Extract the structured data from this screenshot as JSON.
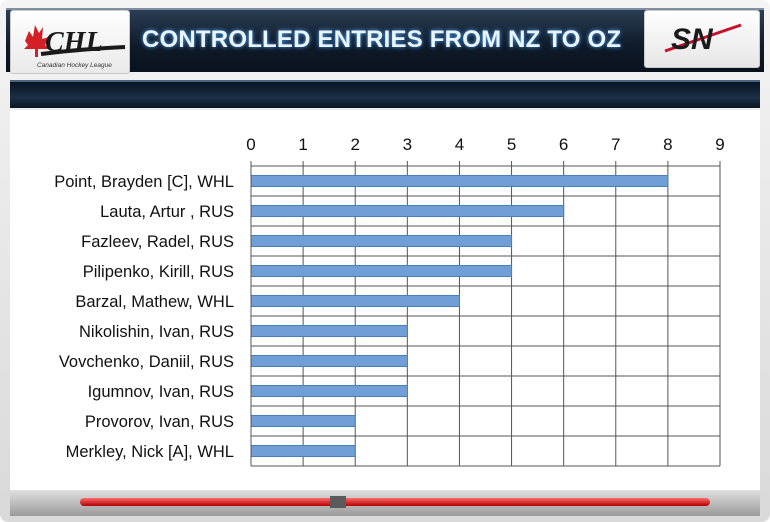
{
  "header": {
    "title": "CONTROLLED ENTRIES FROM NZ TO OZ",
    "left_logo": {
      "text": "CHL",
      "subtext": "Canadian Hockey League",
      "icon": "maple-leaf-icon"
    },
    "right_logo": {
      "text": "SN"
    }
  },
  "colors": {
    "bar": "#6f9fd6",
    "bar_edge": "#4c7fb8",
    "header": "#101c2b",
    "title": "#eaf6ff"
  },
  "chart_data": {
    "type": "bar",
    "orientation": "horizontal",
    "title": "CONTROLLED ENTRIES FROM NZ TO OZ",
    "categories": [
      "Point, Brayden [C], WHL",
      "Lauta, Artur , RUS",
      "Fazleev, Radel, RUS",
      "Pilipenko, Kirill, RUS",
      "Barzal, Mathew, WHL",
      "Nikolishin, Ivan, RUS",
      "Vovchenko, Daniil, RUS",
      "Igumnov, Ivan, RUS",
      "Provorov, Ivan, RUS",
      "Merkley, Nick [A], WHL"
    ],
    "values": [
      8,
      6,
      5,
      5,
      4,
      3,
      3,
      3,
      2,
      2
    ],
    "xlim": [
      0,
      9
    ],
    "xticks": [
      "0",
      "1",
      "2",
      "3",
      "4",
      "5",
      "6",
      "7",
      "8",
      "9"
    ],
    "xaxis_position": "top",
    "grid": true
  }
}
